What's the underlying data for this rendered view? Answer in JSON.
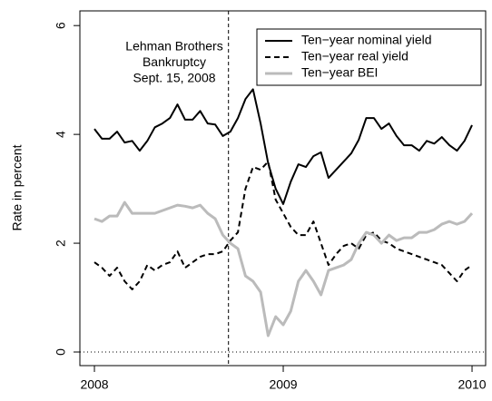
{
  "chart_data": {
    "type": "line",
    "ylabel": "Rate in percent",
    "annotation": [
      "Lehman Brothers",
      "Bankruptcy",
      "Sept. 15, 2008"
    ],
    "vline": 2008.71,
    "hline": 0,
    "xlim": [
      2007.923,
      2010.072
    ],
    "ylim": [
      -0.25,
      6.27
    ],
    "xticks": [
      2008,
      2009,
      2010
    ],
    "yticks": [
      0,
      2,
      4,
      6
    ],
    "legend": "top-right",
    "x": [
      2008.0,
      2008.04,
      2008.08,
      2008.12,
      2008.16,
      2008.2,
      2008.24,
      2008.28,
      2008.32,
      2008.36,
      2008.4,
      2008.44,
      2008.48,
      2008.52,
      2008.56,
      2008.6,
      2008.64,
      2008.68,
      2008.72,
      2008.76,
      2008.8,
      2008.84,
      2008.88,
      2008.92,
      2008.96,
      2009.0,
      2009.04,
      2009.08,
      2009.12,
      2009.16,
      2009.2,
      2009.24,
      2009.28,
      2009.32,
      2009.36,
      2009.4,
      2009.44,
      2009.48,
      2009.52,
      2009.56,
      2009.6,
      2009.64,
      2009.68,
      2009.72,
      2009.76,
      2009.8,
      2009.84,
      2009.88,
      2009.92,
      2009.96,
      2010.0
    ],
    "series": [
      {
        "name": "Ten−year nominal yield",
        "color": "#000000",
        "linestyle": "solid",
        "width": 2,
        "values": [
          4.1,
          3.92,
          3.92,
          4.05,
          3.85,
          3.88,
          3.7,
          3.88,
          4.13,
          4.2,
          4.3,
          4.55,
          4.27,
          4.27,
          4.43,
          4.2,
          4.18,
          3.97,
          4.05,
          4.3,
          4.65,
          4.83,
          4.2,
          3.47,
          3.0,
          2.72,
          3.13,
          3.45,
          3.4,
          3.6,
          3.67,
          3.2,
          3.35,
          3.5,
          3.65,
          3.9,
          4.3,
          4.3,
          4.1,
          4.2,
          3.97,
          3.8,
          3.8,
          3.7,
          3.88,
          3.83,
          3.95,
          3.8,
          3.7,
          3.88,
          4.17
        ]
      },
      {
        "name": "Ten−year real yield",
        "color": "#000000",
        "linestyle": "dashed",
        "width": 2,
        "values": [
          1.65,
          1.55,
          1.4,
          1.55,
          1.3,
          1.15,
          1.3,
          1.6,
          1.5,
          1.6,
          1.65,
          1.85,
          1.55,
          1.65,
          1.75,
          1.8,
          1.8,
          1.85,
          2.05,
          2.2,
          3.0,
          3.4,
          3.35,
          3.5,
          2.8,
          2.55,
          2.3,
          2.15,
          2.15,
          2.4,
          2.0,
          1.6,
          1.8,
          1.95,
          2.0,
          1.9,
          2.15,
          2.2,
          2.05,
          2.0,
          1.9,
          1.85,
          1.8,
          1.75,
          1.7,
          1.65,
          1.6,
          1.45,
          1.3,
          1.5,
          1.6
        ]
      },
      {
        "name": "Ten−year BEI",
        "color": "#bbbbbb",
        "linestyle": "solid",
        "width": 3,
        "values": [
          2.45,
          2.4,
          2.5,
          2.5,
          2.75,
          2.55,
          2.55,
          2.55,
          2.55,
          2.6,
          2.65,
          2.7,
          2.68,
          2.65,
          2.7,
          2.55,
          2.45,
          2.15,
          2.0,
          1.9,
          1.4,
          1.3,
          1.1,
          0.3,
          0.65,
          0.5,
          0.75,
          1.3,
          1.5,
          1.3,
          1.05,
          1.5,
          1.55,
          1.6,
          1.7,
          2.0,
          2.2,
          2.15,
          2.0,
          2.15,
          2.05,
          2.1,
          2.1,
          2.2,
          2.2,
          2.25,
          2.35,
          2.4,
          2.35,
          2.4,
          2.55
        ]
      }
    ]
  }
}
